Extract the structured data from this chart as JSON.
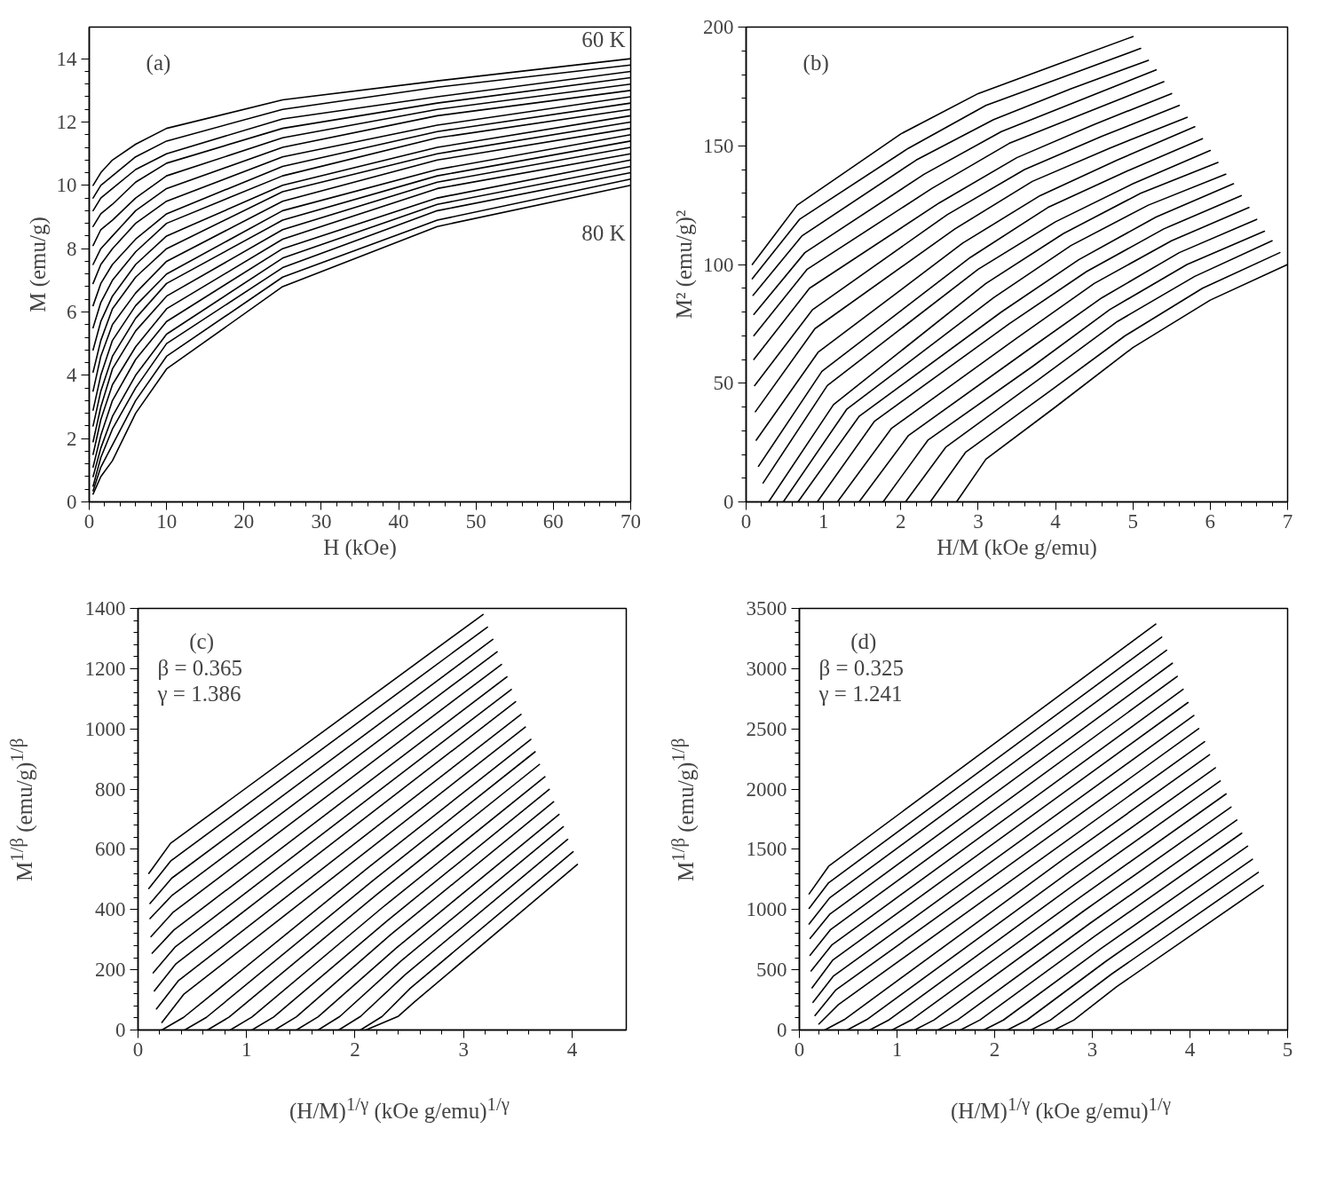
{
  "chart_data": [
    {
      "type": "line",
      "xlabel": "H (kOe)",
      "ylabel": "M (emu/g)",
      "xlim": [
        0,
        70
      ],
      "ylim": [
        0,
        15
      ],
      "xticks": [
        0,
        10,
        20,
        30,
        40,
        50,
        60,
        70
      ],
      "yticks": [
        0,
        2,
        4,
        6,
        8,
        10,
        12,
        14
      ],
      "color": "#000000",
      "annotations": [
        "(a)",
        {
          "text": "60 K",
          "x": 70,
          "y": 14.0
        },
        {
          "text": "80 K",
          "x": 70,
          "y": 10.0
        }
      ],
      "x": [
        0.5,
        1.5,
        3,
        6,
        10,
        25,
        45,
        70
      ],
      "series": [
        {
          "values": [
            10.0,
            10.4,
            10.8,
            11.3,
            11.8,
            12.7,
            13.3,
            14.0
          ]
        },
        {
          "values": [
            9.6,
            10.0,
            10.3,
            10.9,
            11.4,
            12.4,
            13.1,
            13.8
          ]
        },
        {
          "values": [
            9.2,
            9.6,
            9.9,
            10.5,
            11.0,
            12.1,
            12.8,
            13.6
          ]
        },
        {
          "values": [
            8.7,
            9.1,
            9.4,
            10.1,
            10.7,
            11.8,
            12.6,
            13.4
          ]
        },
        {
          "values": [
            8.1,
            8.6,
            8.9,
            9.6,
            10.3,
            11.5,
            12.4,
            13.2
          ]
        },
        {
          "values": [
            7.5,
            8.0,
            8.4,
            9.2,
            9.9,
            11.2,
            12.2,
            13.0
          ]
        },
        {
          "values": [
            6.9,
            7.5,
            8.0,
            8.8,
            9.5,
            10.9,
            11.9,
            12.8
          ]
        },
        {
          "values": [
            6.2,
            6.9,
            7.5,
            8.3,
            9.1,
            10.6,
            11.7,
            12.6
          ]
        },
        {
          "values": [
            5.5,
            6.3,
            7.0,
            7.9,
            8.8,
            10.3,
            11.5,
            12.4
          ]
        },
        {
          "values": [
            4.8,
            5.7,
            6.5,
            7.5,
            8.4,
            10.0,
            11.2,
            12.2
          ]
        },
        {
          "values": [
            4.1,
            5.1,
            6.1,
            7.1,
            8.0,
            9.8,
            11.0,
            12.0
          ]
        },
        {
          "values": [
            3.5,
            4.6,
            5.6,
            6.6,
            7.6,
            9.5,
            10.8,
            11.8
          ]
        },
        {
          "values": [
            2.9,
            4.0,
            5.1,
            6.2,
            7.2,
            9.2,
            10.5,
            11.6
          ]
        },
        {
          "values": [
            2.4,
            3.5,
            4.6,
            5.8,
            6.9,
            8.9,
            10.3,
            11.4
          ]
        },
        {
          "values": [
            1.9,
            3.0,
            4.2,
            5.4,
            6.5,
            8.6,
            10.1,
            11.2
          ]
        },
        {
          "values": [
            1.5,
            2.6,
            3.7,
            4.9,
            6.1,
            8.3,
            9.9,
            11.0
          ]
        },
        {
          "values": [
            1.1,
            2.1,
            3.2,
            4.5,
            5.7,
            8.0,
            9.6,
            10.8
          ]
        },
        {
          "values": [
            0.8,
            1.7,
            2.7,
            4.0,
            5.3,
            7.7,
            9.4,
            10.6
          ]
        },
        {
          "values": [
            0.5,
            1.4,
            2.3,
            3.6,
            5.0,
            7.4,
            9.2,
            10.4
          ]
        },
        {
          "values": [
            0.35,
            1.1,
            1.8,
            3.2,
            4.6,
            7.1,
            8.9,
            10.2
          ]
        },
        {
          "values": [
            0.25,
            0.8,
            1.3,
            2.8,
            4.2,
            6.8,
            8.7,
            10.0
          ]
        }
      ]
    },
    {
      "type": "line",
      "xlabel": "H/M (kOe g/emu)",
      "ylabel": "M² (emu/g)²",
      "xlim": [
        0,
        7
      ],
      "ylim": [
        0,
        200
      ],
      "xticks": [
        0,
        1,
        2,
        3,
        4,
        5,
        6,
        7
      ],
      "yticks": [
        0,
        50,
        100,
        150,
        200
      ],
      "color": "#000000",
      "annotations": [
        "(b)"
      ],
      "series": [
        {
          "x": [
            0.08,
            0.66,
            2.0,
            3.0,
            4.0,
            5.0
          ],
          "values": [
            100,
            125,
            155,
            172,
            184,
            196
          ]
        },
        {
          "x": [
            0.08,
            0.69,
            2.1,
            3.1,
            4.1,
            5.1
          ],
          "values": [
            94,
            119,
            149,
            167,
            179,
            191
          ]
        },
        {
          "x": [
            0.09,
            0.72,
            2.2,
            3.2,
            4.2,
            5.2
          ],
          "values": [
            87,
            112,
            144,
            161,
            174,
            186
          ]
        },
        {
          "x": [
            0.1,
            0.76,
            2.3,
            3.3,
            4.3,
            5.3
          ],
          "values": [
            79,
            105,
            138,
            156,
            169,
            182
          ]
        },
        {
          "x": [
            0.1,
            0.79,
            2.4,
            3.4,
            4.4,
            5.4
          ],
          "values": [
            70,
            98,
            132,
            151,
            164,
            177
          ]
        },
        {
          "x": [
            0.1,
            0.82,
            2.5,
            3.5,
            4.5,
            5.5
          ],
          "values": [
            60,
            90,
            126,
            145,
            159,
            172
          ]
        },
        {
          "x": [
            0.11,
            0.86,
            2.6,
            3.6,
            4.6,
            5.6
          ],
          "values": [
            49,
            81,
            121,
            140,
            154,
            167
          ]
        },
        {
          "x": [
            0.12,
            0.89,
            2.7,
            3.7,
            4.7,
            5.7
          ],
          "values": [
            38,
            73,
            115,
            135,
            149,
            162
          ]
        },
        {
          "x": [
            0.13,
            0.93,
            2.8,
            3.8,
            4.8,
            5.8
          ],
          "values": [
            26,
            63,
            109,
            129,
            144,
            158
          ]
        },
        {
          "x": [
            0.16,
            0.98,
            2.9,
            3.9,
            4.9,
            5.9
          ],
          "values": [
            15,
            55,
            103,
            124,
            139,
            153
          ]
        },
        {
          "x": [
            0.22,
            1.05,
            3.0,
            4.0,
            5.0,
            6.0
          ],
          "values": [
            8,
            49,
            98,
            118,
            134,
            148
          ]
        },
        {
          "x": [
            0.29,
            1.13,
            3.1,
            4.1,
            5.1,
            6.1
          ],
          "values": [
            0,
            41,
            92,
            113,
            130,
            143
          ]
        },
        {
          "x": [
            0.48,
            1.3,
            3.2,
            4.2,
            5.2,
            6.2
          ],
          "values": [
            0,
            39,
            86,
            108,
            125,
            138
          ]
        },
        {
          "x": [
            0.67,
            1.46,
            3.3,
            4.3,
            5.3,
            6.3
          ],
          "values": [
            0,
            36,
            80,
            102,
            120,
            134
          ]
        },
        {
          "x": [
            0.92,
            1.66,
            3.4,
            4.4,
            5.4,
            6.4
          ],
          "values": [
            0,
            34,
            75,
            97,
            115,
            129
          ]
        },
        {
          "x": [
            1.18,
            1.88,
            3.5,
            4.5,
            5.5,
            6.5
          ],
          "values": [
            0,
            31,
            69,
            92,
            110,
            124
          ]
        },
        {
          "x": [
            1.46,
            2.1,
            3.6,
            4.6,
            5.6,
            6.6
          ],
          "values": [
            0,
            28,
            63,
            86,
            105,
            119
          ]
        },
        {
          "x": [
            1.77,
            2.35,
            3.7,
            4.7,
            5.7,
            6.7
          ],
          "values": [
            0,
            26,
            57,
            81,
            100,
            114
          ]
        },
        {
          "x": [
            2.06,
            2.58,
            3.8,
            4.8,
            5.8,
            6.8
          ],
          "values": [
            0,
            23,
            52,
            76,
            95,
            110
          ]
        },
        {
          "x": [
            2.38,
            2.84,
            3.9,
            4.9,
            5.9,
            6.9
          ],
          "values": [
            0,
            21,
            46,
            70,
            90,
            105
          ]
        },
        {
          "x": [
            2.72,
            3.1,
            4.0,
            5.0,
            6.0,
            7.0
          ],
          "values": [
            0,
            18,
            40,
            65,
            85,
            100
          ]
        }
      ]
    },
    {
      "type": "line",
      "xlabel": "(H/M)$^{1/γ}$ (kOe g/emu)$^{1/γ}$",
      "ylabel": "M$^{1/β}$ (emu/g)$^{1/β}$",
      "xlim": [
        0,
        4.5
      ],
      "ylim": [
        0,
        1400
      ],
      "xticks": [
        0,
        1,
        2,
        3,
        4
      ],
      "yticks": [
        0,
        200,
        400,
        600,
        800,
        1000,
        1200,
        1400
      ],
      "color": "#000000",
      "annotations": [
        "(c)",
        "β = 0.365",
        "γ = 1.386"
      ],
      "series": [
        {
          "x": [
            0.1,
            0.3,
            1.68,
            3.18
          ],
          "values": [
            520,
            620,
            984,
            1380
          ]
        },
        {
          "x": [
            0.1,
            0.3,
            1.72,
            3.22
          ],
          "values": [
            470,
            561,
            939,
            1338
          ]
        },
        {
          "x": [
            0.11,
            0.31,
            1.77,
            3.27
          ],
          "values": [
            420,
            504,
            895,
            1297
          ]
        },
        {
          "x": [
            0.11,
            0.31,
            1.81,
            3.31
          ],
          "values": [
            370,
            446,
            851,
            1256
          ]
        },
        {
          "x": [
            0.12,
            0.32,
            1.85,
            3.35
          ],
          "values": [
            310,
            390,
            806,
            1214
          ]
        },
        {
          "x": [
            0.13,
            0.33,
            1.9,
            3.4
          ],
          "values": [
            255,
            332,
            762,
            1173
          ]
        },
        {
          "x": [
            0.14,
            0.34,
            1.94,
            3.44
          ],
          "values": [
            190,
            275,
            717,
            1131
          ]
        },
        {
          "x": [
            0.15,
            0.35,
            1.98,
            3.48
          ],
          "values": [
            130,
            220,
            673,
            1090
          ]
        },
        {
          "x": [
            0.17,
            0.37,
            2.03,
            3.53
          ],
          "values": [
            70,
            163,
            628,
            1048
          ]
        },
        {
          "x": [
            0.22,
            0.42,
            2.07,
            3.57
          ],
          "values": [
            25,
            118,
            583,
            1006
          ]
        },
        {
          "x": [
            0.22,
            0.42,
            2.12,
            3.62
          ],
          "values": [
            0,
            42,
            539,
            965
          ]
        },
        {
          "x": [
            0.43,
            0.63,
            2.16,
            3.66
          ],
          "values": [
            0,
            42,
            495,
            924
          ]
        },
        {
          "x": [
            0.64,
            0.84,
            2.2,
            3.7
          ],
          "values": [
            0,
            43,
            450,
            882
          ]
        },
        {
          "x": [
            0.85,
            1.05,
            2.25,
            3.75
          ],
          "values": [
            0,
            43,
            406,
            841
          ]
        },
        {
          "x": [
            1.05,
            1.25,
            2.29,
            3.79
          ],
          "values": [
            0,
            43,
            361,
            799
          ]
        },
        {
          "x": [
            1.26,
            1.46,
            2.33,
            3.83
          ],
          "values": [
            0,
            44,
            317,
            758
          ]
        },
        {
          "x": [
            1.46,
            1.66,
            2.38,
            3.88
          ],
          "values": [
            0,
            44,
            272,
            716
          ]
        },
        {
          "x": [
            1.66,
            1.86,
            2.42,
            3.92
          ],
          "values": [
            0,
            45,
            228,
            675
          ]
        },
        {
          "x": [
            1.85,
            2.05,
            2.46,
            3.96
          ],
          "values": [
            0,
            45,
            183,
            633
          ]
        },
        {
          "x": [
            2.05,
            2.25,
            2.51,
            4.01
          ],
          "values": [
            0,
            45,
            139,
            592
          ]
        },
        {
          "x": [
            2.1,
            2.4,
            2.55,
            4.05
          ],
          "values": [
            0,
            46,
            94,
            550
          ]
        }
      ]
    },
    {
      "type": "line",
      "xlabel": "(H/M)$^{1/γ}$ (kOe g/emu)$^{1/γ}$",
      "ylabel": "M$^{1/β}$ (emu/g)$^{1/β}$",
      "xlim": [
        0,
        5
      ],
      "ylim": [
        0,
        3500
      ],
      "xticks": [
        0,
        1,
        2,
        3,
        4,
        5
      ],
      "yticks": [
        0,
        500,
        1000,
        1500,
        2000,
        2500,
        3000,
        3500
      ],
      "color": "#000000",
      "annotations": [
        "(d)",
        "β = 0.325",
        "γ = 1.241"
      ],
      "series": [
        {
          "x": [
            0.1,
            0.3,
            2.15,
            3.65
          ],
          "values": [
            1130,
            1360,
            2470,
            3370
          ]
        },
        {
          "x": [
            0.1,
            0.3,
            2.21,
            3.71
          ],
          "values": [
            1010,
            1223,
            2365,
            3262
          ]
        },
        {
          "x": [
            0.1,
            0.31,
            2.26,
            3.76
          ],
          "values": [
            880,
            1097,
            2259,
            3153
          ]
        },
        {
          "x": [
            0.11,
            0.31,
            2.32,
            3.82
          ],
          "values": [
            760,
            960,
            2154,
            3045
          ]
        },
        {
          "x": [
            0.11,
            0.32,
            2.37,
            3.87
          ],
          "values": [
            620,
            834,
            2048,
            2936
          ]
        },
        {
          "x": [
            0.12,
            0.33,
            2.43,
            3.93
          ],
          "values": [
            490,
            704,
            1943,
            2828
          ]
        },
        {
          "x": [
            0.13,
            0.34,
            2.48,
            3.98
          ],
          "values": [
            350,
            579,
            1837,
            2719
          ]
        },
        {
          "x": [
            0.14,
            0.35,
            2.54,
            4.04
          ],
          "values": [
            230,
            449,
            1732,
            2611
          ]
        },
        {
          "x": [
            0.16,
            0.37,
            2.59,
            4.09
          ],
          "values": [
            120,
            330,
            1626,
            2502
          ]
        },
        {
          "x": [
            0.2,
            0.4,
            2.65,
            4.15
          ],
          "values": [
            50,
            211,
            1521,
            2394
          ]
        },
        {
          "x": [
            0.26,
            0.46,
            2.7,
            4.2
          ],
          "values": [
            0,
            86,
            1415,
            2285
          ]
        },
        {
          "x": [
            0.49,
            0.69,
            2.76,
            4.26
          ],
          "values": [
            0,
            86,
            1310,
            2177
          ]
        },
        {
          "x": [
            0.72,
            0.92,
            2.81,
            4.31
          ],
          "values": [
            0,
            85,
            1204,
            2068
          ]
        },
        {
          "x": [
            0.95,
            1.15,
            2.87,
            4.37
          ],
          "values": [
            0,
            85,
            1099,
            1960
          ]
        },
        {
          "x": [
            1.18,
            1.38,
            2.92,
            4.42
          ],
          "values": [
            0,
            84,
            993,
            1851
          ]
        },
        {
          "x": [
            1.42,
            1.62,
            2.98,
            4.48
          ],
          "values": [
            0,
            84,
            888,
            1743
          ]
        },
        {
          "x": [
            1.65,
            1.85,
            3.03,
            4.53
          ],
          "values": [
            0,
            84,
            782,
            1634
          ]
        },
        {
          "x": [
            1.89,
            2.09,
            3.09,
            4.59
          ],
          "values": [
            0,
            83,
            677,
            1526
          ]
        },
        {
          "x": [
            2.13,
            2.33,
            3.14,
            4.64
          ],
          "values": [
            0,
            83,
            571,
            1417
          ]
        },
        {
          "x": [
            2.37,
            2.57,
            3.2,
            4.7
          ],
          "values": [
            0,
            82,
            466,
            1309
          ]
        },
        {
          "x": [
            2.61,
            2.81,
            3.25,
            4.75
          ],
          "values": [
            0,
            82,
            360,
            1200
          ]
        }
      ]
    }
  ]
}
